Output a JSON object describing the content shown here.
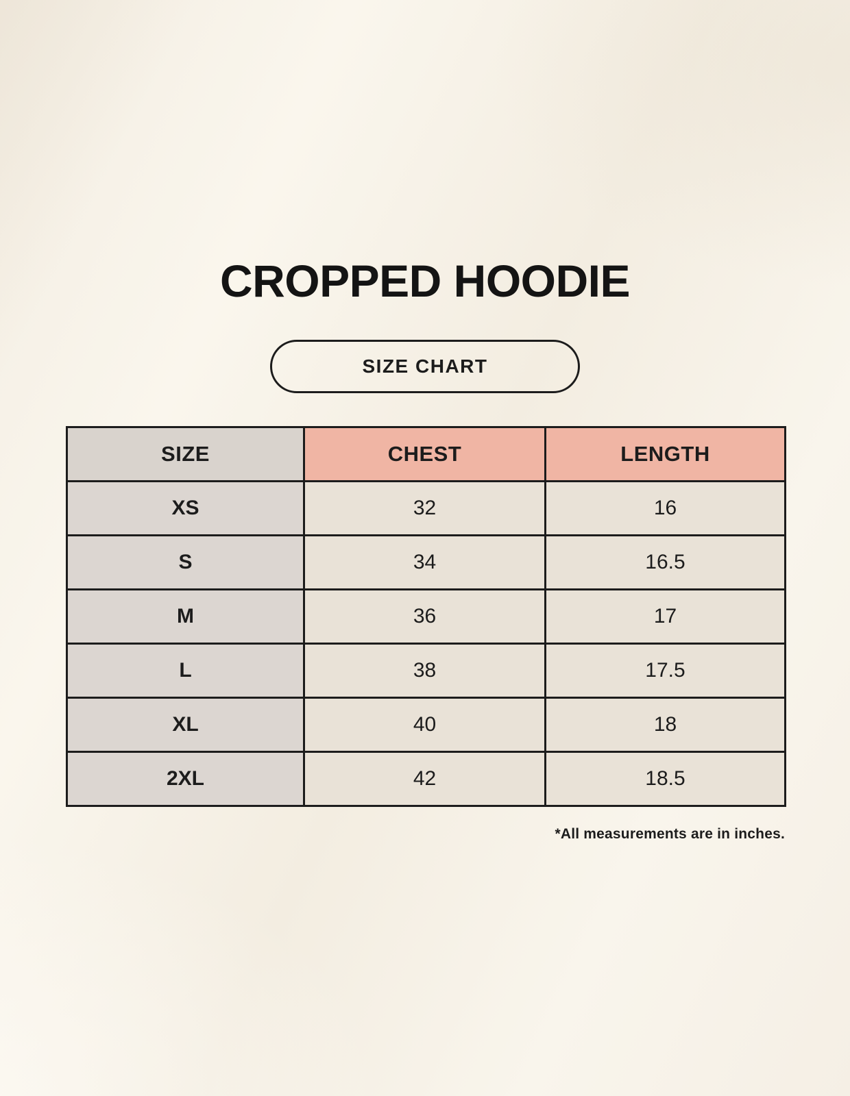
{
  "page": {
    "title": "CROPPED HOODIE",
    "badge_label": "SIZE CHART",
    "footnote": "*All measurements are in inches."
  },
  "colors": {
    "background": "#f7f2e9",
    "table_border": "#1c1c1c",
    "header_size_bg": "#d9d3cd",
    "header_measure_bg": "#f0b5a4",
    "row_label_bg": "#dcd6d1",
    "row_value_bg": "#e9e2d7",
    "text": "#1c1c1c"
  },
  "chart_data": {
    "type": "table",
    "title": "CROPPED HOODIE",
    "columns": [
      "SIZE",
      "CHEST",
      "LENGTH"
    ],
    "rows": [
      {
        "size": "XS",
        "chest": "32",
        "length": "16"
      },
      {
        "size": "S",
        "chest": "34",
        "length": "16.5"
      },
      {
        "size": "M",
        "chest": "36",
        "length": "17"
      },
      {
        "size": "L",
        "chest": "38",
        "length": "17.5"
      },
      {
        "size": "XL",
        "chest": "40",
        "length": "18"
      },
      {
        "size": "2XL",
        "chest": "42",
        "length": "18.5"
      }
    ],
    "units_note": "*All measurements are in inches."
  }
}
